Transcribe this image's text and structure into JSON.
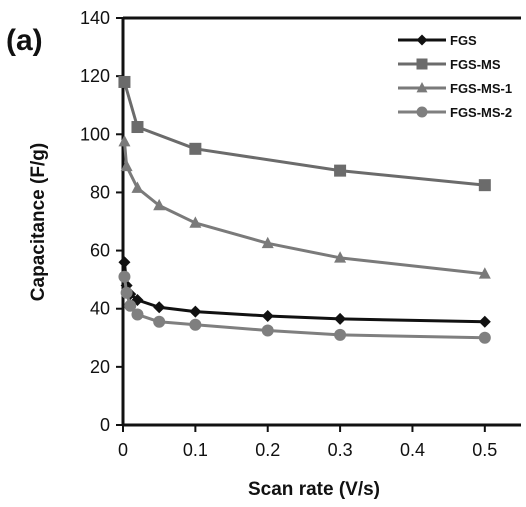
{
  "chart_data": {
    "type": "line",
    "panel_label": "(a)",
    "title": "",
    "xlabel": "Scan rate (V/s)",
    "ylabel": "Capacitance (F/g)",
    "xlim": [
      0,
      0.55
    ],
    "ylim": [
      0,
      140
    ],
    "xticks": [
      "0",
      "0.1",
      "0.2",
      "0.3",
      "0.4",
      "0.5"
    ],
    "yticks": [
      "0",
      "20",
      "40",
      "60",
      "80",
      "100",
      "120",
      "140"
    ],
    "grid": false,
    "legend_position": "top-right",
    "series": [
      {
        "name": "FGS",
        "color": "#111111",
        "marker": "diamond",
        "x": [
          0.002,
          0.005,
          0.01,
          0.02,
          0.05,
          0.1,
          0.2,
          0.3,
          0.5
        ],
        "y": [
          56,
          48,
          45,
          43,
          40.5,
          39,
          37.5,
          36.5,
          35.5
        ]
      },
      {
        "name": "FGS-MS",
        "color": "#6b6b6b",
        "marker": "square",
        "x": [
          0.002,
          0.02,
          0.1,
          0.3,
          0.5
        ],
        "y": [
          118,
          102.5,
          95,
          87.5,
          82.5
        ]
      },
      {
        "name": "FGS-MS-1",
        "color": "#7a7a7a",
        "marker": "triangle",
        "x": [
          0.002,
          0.005,
          0.02,
          0.05,
          0.1,
          0.2,
          0.3,
          0.5
        ],
        "y": [
          97.5,
          89,
          81.5,
          75.5,
          69.5,
          62.5,
          57.5,
          52
        ]
      },
      {
        "name": "FGS-MS-2",
        "color": "#7f7f7f",
        "marker": "circle",
        "x": [
          0.002,
          0.005,
          0.01,
          0.02,
          0.05,
          0.1,
          0.2,
          0.3,
          0.5
        ],
        "y": [
          51,
          45.5,
          41,
          38,
          35.5,
          34.5,
          32.5,
          31,
          30
        ]
      }
    ]
  }
}
